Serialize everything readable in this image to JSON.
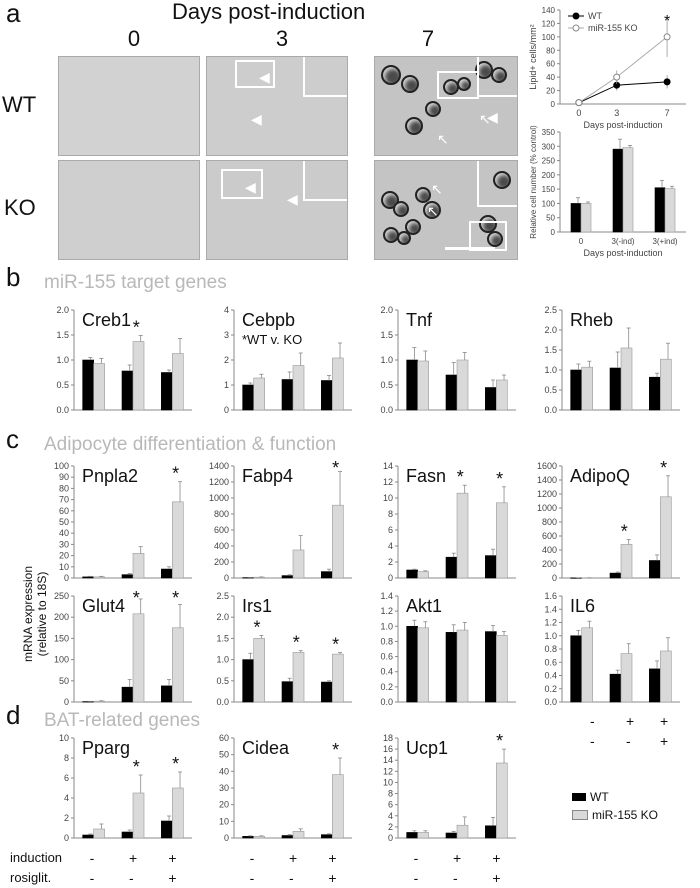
{
  "panels": {
    "a": {
      "letter": "a",
      "header": "Days post-induction",
      "days": [
        "0",
        "3",
        "7"
      ],
      "rows": [
        "WT",
        "KO"
      ]
    },
    "b": {
      "letter": "b",
      "title": "miR-155 target genes"
    },
    "c": {
      "letter": "c",
      "title": "Adipocyte differentiation & function"
    },
    "d": {
      "letter": "d",
      "title": "BAT-related genes"
    }
  },
  "y_axis_shared": "mRNA expression\n(relative to 18S)",
  "treatment_rows": {
    "c_rows": [
      {
        "label": "",
        "values": [
          "-",
          "+",
          "+"
        ]
      },
      {
        "label": "",
        "values": [
          "-",
          "-",
          "+"
        ]
      }
    ],
    "d_rows": [
      {
        "label": "induction",
        "values": [
          "-",
          "+",
          "+"
        ]
      },
      {
        "label": "rosiglit.",
        "values": [
          "-",
          "-",
          "+"
        ]
      }
    ]
  },
  "legend": {
    "wt": "WT",
    "ko": "miR-155 KO"
  },
  "colors": {
    "wt": "#000000",
    "ko": "#d9d9d9"
  },
  "chart_data": [
    {
      "id": "lipid",
      "type": "line",
      "x": [
        0,
        3,
        7
      ],
      "series": [
        {
          "name": "WT",
          "values": [
            2,
            28,
            33
          ],
          "err": [
            1,
            8,
            10
          ]
        },
        {
          "name": "miR-155 KO",
          "values": [
            2,
            40,
            100
          ],
          "err": [
            1,
            10,
            30
          ]
        }
      ],
      "xlabel": "Days post-induction",
      "ylabel": "Lipid+ cells/mm²",
      "yticks": [
        "0",
        "20",
        "40",
        "60",
        "80",
        "100",
        "120",
        "140"
      ],
      "ylim": [
        0,
        140
      ],
      "xticks": [
        "0",
        "3",
        "7"
      ],
      "xlim": [
        -1.5,
        8.5
      ],
      "annotations": [
        {
          "x": 7,
          "y": 125,
          "text": "*"
        }
      ]
    },
    {
      "id": "cellnum",
      "type": "bar",
      "categories": [
        "0",
        "3(-ind)",
        "3(+ind)"
      ],
      "series": [
        {
          "name": "WT",
          "values": [
            100,
            290,
            155
          ],
          "err": [
            20,
            35,
            25
          ]
        },
        {
          "name": "miR-155 KO",
          "values": [
            100,
            295,
            152
          ],
          "err": [
            5,
            8,
            8
          ]
        }
      ],
      "xlabel": "Days post-induction",
      "ylabel": "Relative cell number (% control)",
      "yticks": [
        "0",
        "50",
        "100",
        "150",
        "200",
        "250",
        "300",
        "350"
      ],
      "ylim": [
        0,
        350
      ]
    },
    {
      "id": "creb1",
      "type": "bar",
      "title": "Creb1",
      "series": [
        {
          "name": "WT",
          "values": [
            1.0,
            0.78,
            0.75
          ],
          "err": [
            0.05,
            0.12,
            0.05
          ]
        },
        {
          "name": "miR-155 KO",
          "values": [
            0.93,
            1.37,
            1.13
          ],
          "err": [
            0.1,
            0.12,
            0.3
          ]
        }
      ],
      "yticks": [
        "0.0",
        "0.5",
        "1.0",
        "1.5",
        "2.0"
      ],
      "ylim": [
        0,
        2.0
      ],
      "annotations": [
        {
          "group": 1,
          "text": "*"
        }
      ]
    },
    {
      "id": "cebpb",
      "type": "bar",
      "title": "Cebpb",
      "series": [
        {
          "name": "WT",
          "values": [
            1.0,
            1.22,
            1.18
          ],
          "err": [
            0.08,
            0.3,
            0.2
          ]
        },
        {
          "name": "miR-155 KO",
          "values": [
            1.28,
            1.78,
            2.08
          ],
          "err": [
            0.15,
            0.5,
            0.6
          ]
        }
      ],
      "yticks": [
        "0",
        "1",
        "2",
        "3",
        "4"
      ],
      "ylim": [
        0,
        4
      ],
      "annotations": [
        {
          "text": "*WT v. KO"
        }
      ]
    },
    {
      "id": "tnf",
      "type": "bar",
      "title": "Tnf",
      "series": [
        {
          "name": "WT",
          "values": [
            1.0,
            0.7,
            0.45
          ],
          "err": [
            0.25,
            0.25,
            0.15
          ]
        },
        {
          "name": "miR-155 KO",
          "values": [
            0.98,
            1.0,
            0.6
          ],
          "err": [
            0.2,
            0.15,
            0.1
          ]
        }
      ],
      "yticks": [
        "0.0",
        "0.5",
        "1.0",
        "1.5",
        "2.0"
      ],
      "ylim": [
        0,
        2.0
      ]
    },
    {
      "id": "rheb",
      "type": "bar",
      "title": "Rheb",
      "series": [
        {
          "name": "WT",
          "values": [
            1.0,
            1.05,
            0.82
          ],
          "err": [
            0.15,
            0.4,
            0.1
          ]
        },
        {
          "name": "miR-155 KO",
          "values": [
            1.07,
            1.55,
            1.27
          ],
          "err": [
            0.15,
            0.5,
            0.4
          ]
        }
      ],
      "yticks": [
        "0.0",
        "0.5",
        "1.0",
        "1.5",
        "2.0",
        "2.5"
      ],
      "ylim": [
        0,
        2.5
      ]
    },
    {
      "id": "pnpla2",
      "type": "bar",
      "title": "Pnpla2",
      "series": [
        {
          "name": "WT",
          "values": [
            1,
            3,
            8
          ],
          "err": [
            0.5,
            1,
            2
          ]
        },
        {
          "name": "miR-155 KO",
          "values": [
            1,
            22,
            68
          ],
          "err": [
            0.5,
            6,
            18
          ]
        }
      ],
      "yticks": [
        "0",
        "10",
        "20",
        "30",
        "40",
        "50",
        "60",
        "70",
        "80",
        "90",
        "100"
      ],
      "ylim": [
        0,
        100
      ],
      "annotations": [
        {
          "group": 2,
          "text": "*"
        }
      ]
    },
    {
      "id": "fabp4",
      "type": "bar",
      "title": "Fabp4",
      "series": [
        {
          "name": "WT",
          "values": [
            5,
            30,
            80
          ],
          "err": [
            2,
            10,
            30
          ]
        },
        {
          "name": "miR-155 KO",
          "values": [
            10,
            350,
            910
          ],
          "err": [
            4,
            180,
            420
          ]
        }
      ],
      "yticks": [
        "0",
        "200",
        "400",
        "600",
        "800",
        "1000",
        "1200",
        "1400"
      ],
      "ylim": [
        0,
        1400
      ],
      "annotations": [
        {
          "group": 2,
          "text": "*"
        }
      ]
    },
    {
      "id": "fasn",
      "type": "bar",
      "title": "Fasn",
      "series": [
        {
          "name": "WT",
          "values": [
            1.0,
            2.6,
            2.8
          ],
          "err": [
            0.1,
            0.5,
            0.8
          ]
        },
        {
          "name": "miR-155 KO",
          "values": [
            0.8,
            10.6,
            9.4
          ],
          "err": [
            0.1,
            1.0,
            2.0
          ]
        }
      ],
      "yticks": [
        "0",
        "2",
        "4",
        "6",
        "8",
        "10",
        "12",
        "14"
      ],
      "ylim": [
        0,
        14
      ],
      "annotations": [
        {
          "group": 1,
          "text": "*"
        },
        {
          "group": 2,
          "text": "*"
        }
      ]
    },
    {
      "id": "adipoq",
      "type": "bar",
      "title": "AdipoQ",
      "series": [
        {
          "name": "WT",
          "values": [
            2,
            70,
            250
          ],
          "err": [
            1,
            15,
            80
          ]
        },
        {
          "name": "miR-155 KO",
          "values": [
            3,
            480,
            1160
          ],
          "err": [
            1,
            70,
            300
          ]
        }
      ],
      "yticks": [
        "0",
        "200",
        "400",
        "600",
        "800",
        "1000",
        "1200",
        "1400",
        "1600"
      ],
      "ylim": [
        0,
        1600
      ],
      "annotations": [
        {
          "group": 1,
          "text": "*"
        },
        {
          "group": 2,
          "text": "*"
        }
      ]
    },
    {
      "id": "glut4",
      "type": "bar",
      "title": "Glut4",
      "series": [
        {
          "name": "WT",
          "values": [
            1,
            35,
            38
          ],
          "err": [
            0.5,
            18,
            15
          ]
        },
        {
          "name": "miR-155 KO",
          "values": [
            2,
            208,
            175
          ],
          "err": [
            1,
            35,
            55
          ]
        }
      ],
      "yticks": [
        "0",
        "50",
        "100",
        "150",
        "200",
        "250"
      ],
      "ylim": [
        0,
        250
      ],
      "annotations": [
        {
          "group": 1,
          "text": "*"
        },
        {
          "group": 2,
          "text": "*"
        }
      ]
    },
    {
      "id": "irs1",
      "type": "bar",
      "title": "Irs1",
      "series": [
        {
          "name": "WT",
          "values": [
            1.0,
            0.48,
            0.47
          ],
          "err": [
            0.15,
            0.08,
            0.03
          ]
        },
        {
          "name": "miR-155 KO",
          "values": [
            1.5,
            1.17,
            1.13
          ],
          "err": [
            0.07,
            0.04,
            0.04
          ]
        }
      ],
      "yticks": [
        "0.0",
        "0.5",
        "1.0",
        "1.5",
        "2.0",
        "2.5"
      ],
      "ylim": [
        0,
        2.5
      ],
      "annotations": [
        {
          "group": 0,
          "text": "*"
        },
        {
          "group": 1,
          "text": "*"
        },
        {
          "group": 2,
          "text": "*"
        }
      ]
    },
    {
      "id": "akt1",
      "type": "bar",
      "title": "Akt1",
      "series": [
        {
          "name": "WT",
          "values": [
            1.0,
            0.92,
            0.93
          ],
          "err": [
            0.08,
            0.1,
            0.08
          ]
        },
        {
          "name": "miR-155 KO",
          "values": [
            0.98,
            0.95,
            0.88
          ],
          "err": [
            0.08,
            0.1,
            0.05
          ]
        }
      ],
      "yticks": [
        "0.0",
        "0.2",
        "0.4",
        "0.6",
        "0.8",
        "1.0",
        "1.2",
        "1.4"
      ],
      "ylim": [
        0,
        1.4
      ]
    },
    {
      "id": "il6",
      "type": "bar",
      "title": "IL6",
      "series": [
        {
          "name": "WT",
          "values": [
            1.0,
            0.42,
            0.5
          ],
          "err": [
            0.08,
            0.06,
            0.12
          ]
        },
        {
          "name": "miR-155 KO",
          "values": [
            1.12,
            0.73,
            0.77
          ],
          "err": [
            0.1,
            0.15,
            0.2
          ]
        }
      ],
      "yticks": [
        "0.0",
        "0.2",
        "0.4",
        "0.6",
        "0.8",
        "1.0",
        "1.2",
        "1.4",
        "1.6"
      ],
      "ylim": [
        0,
        1.6
      ]
    },
    {
      "id": "pparg",
      "type": "bar",
      "title": "Pparg",
      "series": [
        {
          "name": "WT",
          "values": [
            0.3,
            0.6,
            1.7
          ],
          "err": [
            0.1,
            0.2,
            0.5
          ]
        },
        {
          "name": "miR-155 KO",
          "values": [
            0.9,
            4.5,
            5.0
          ],
          "err": [
            0.5,
            1.8,
            1.6
          ]
        }
      ],
      "yticks": [
        "0",
        "2",
        "4",
        "6",
        "8",
        "10"
      ],
      "ylim": [
        0,
        10
      ],
      "annotations": [
        {
          "group": 1,
          "text": "*"
        },
        {
          "group": 2,
          "text": "*"
        }
      ]
    },
    {
      "id": "cidea",
      "type": "bar",
      "title": "Cidea",
      "series": [
        {
          "name": "WT",
          "values": [
            1,
            1.5,
            2
          ],
          "err": [
            0.3,
            0.5,
            0.5
          ]
        },
        {
          "name": "miR-155 KO",
          "values": [
            1,
            4,
            38
          ],
          "err": [
            0.3,
            1.5,
            10
          ]
        }
      ],
      "yticks": [
        "0",
        "10",
        "20",
        "30",
        "40",
        "50",
        "60"
      ],
      "ylim": [
        0,
        60
      ],
      "annotations": [
        {
          "group": 2,
          "text": "*"
        }
      ]
    },
    {
      "id": "ucp1",
      "type": "bar",
      "title": "Ucp1",
      "series": [
        {
          "name": "WT",
          "values": [
            1.0,
            0.9,
            2.2
          ],
          "err": [
            0.3,
            0.3,
            1.5
          ]
        },
        {
          "name": "miR-155 KO",
          "values": [
            1.0,
            2.3,
            13.5
          ],
          "err": [
            0.3,
            1.5,
            2.5
          ]
        }
      ],
      "yticks": [
        "0",
        "2",
        "4",
        "6",
        "8",
        "10",
        "12",
        "14",
        "16",
        "18"
      ],
      "ylim": [
        0,
        18
      ],
      "annotations": [
        {
          "group": 2,
          "text": "*"
        }
      ]
    }
  ]
}
